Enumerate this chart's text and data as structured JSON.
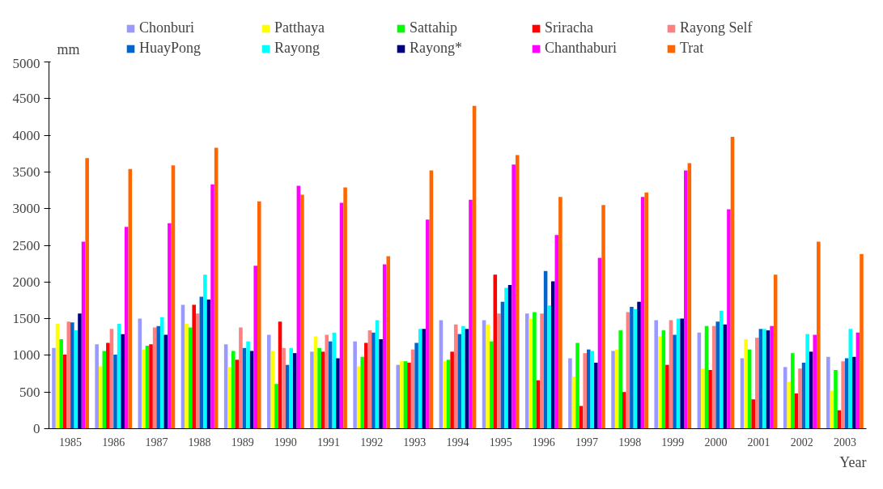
{
  "chart_data": {
    "type": "bar",
    "ylabel": "mm",
    "xlabel": "Year",
    "categories": [
      "1985",
      "1986",
      "1987",
      "1988",
      "1989",
      "1990",
      "1991",
      "1992",
      "1993",
      "1994",
      "1995",
      "1996",
      "1997",
      "1998",
      "1999",
      "2000",
      "2001",
      "2002",
      "2003"
    ],
    "ylim": [
      0,
      5000
    ],
    "yticks": [
      0,
      500,
      1000,
      1500,
      2000,
      2500,
      3000,
      3500,
      4000,
      4500,
      5000
    ],
    "grid": false,
    "legend": "top",
    "series": [
      {
        "name": "Chonburi",
        "color": "#9999ff",
        "values": [
          1100,
          1150,
          1500,
          1690,
          1150,
          1280,
          1050,
          1190,
          870,
          1480,
          1480,
          1570,
          960,
          1060,
          1480,
          1310,
          960,
          840,
          980
        ]
      },
      {
        "name": "Patthaya",
        "color": "#ffff00",
        "values": [
          1430,
          850,
          1080,
          1430,
          840,
          1060,
          1260,
          850,
          920,
          920,
          1420,
          1500,
          710,
          1080,
          1260,
          820,
          1220,
          640,
          520
        ]
      },
      {
        "name": "Sattahip",
        "color": "#00ff00",
        "values": [
          1220,
          1060,
          1130,
          1380,
          1060,
          610,
          1100,
          980,
          920,
          940,
          1190,
          1590,
          1170,
          1340,
          1340,
          1400,
          1080,
          1030,
          800
        ]
      },
      {
        "name": "Sriracha",
        "color": "#ff0000",
        "values": [
          1010,
          1170,
          1150,
          1690,
          940,
          1460,
          1050,
          1170,
          900,
          1050,
          2100,
          660,
          310,
          500,
          870,
          800,
          400,
          480,
          250
        ]
      },
      {
        "name": "Rayong Self",
        "color": "#ff8080",
        "values": [
          1460,
          1360,
          1380,
          1570,
          1380,
          1100,
          1280,
          1340,
          1080,
          1420,
          1570,
          1570,
          1030,
          1590,
          1480,
          1400,
          1240,
          820,
          920
        ]
      },
      {
        "name": "HuayPong",
        "color": "#0066cc",
        "values": [
          1450,
          1010,
          1400,
          1800,
          1100,
          870,
          1190,
          1310,
          1170,
          1290,
          1730,
          2150,
          1080,
          1660,
          1280,
          1460,
          1360,
          900,
          960
        ]
      },
      {
        "name": "Rayong",
        "color": "#00ffff",
        "values": [
          1340,
          1430,
          1520,
          2100,
          1190,
          1100,
          1310,
          1480,
          1360,
          1400,
          1920,
          1680,
          1060,
          1630,
          1500,
          1610,
          1360,
          1290,
          1360
        ]
      },
      {
        "name": "Rayong*",
        "color": "#000080",
        "values": [
          1570,
          1290,
          1280,
          1760,
          1060,
          1030,
          960,
          1220,
          1360,
          1360,
          1960,
          2010,
          900,
          1730,
          1500,
          1420,
          1340,
          1050,
          980
        ]
      },
      {
        "name": "Chanthaburi",
        "color": "#ff00ff",
        "values": [
          2550,
          2750,
          2800,
          3330,
          2220,
          3310,
          3080,
          2240,
          2850,
          3120,
          3600,
          2640,
          2330,
          3160,
          3520,
          2990,
          1400,
          1280,
          1310
        ]
      },
      {
        "name": "Trat",
        "color": "#ff6600",
        "values": [
          3690,
          3540,
          3590,
          3830,
          3100,
          3190,
          3290,
          2350,
          3520,
          4400,
          3730,
          3160,
          3050,
          3220,
          3620,
          3980,
          2100,
          2550,
          2380
        ]
      }
    ]
  }
}
